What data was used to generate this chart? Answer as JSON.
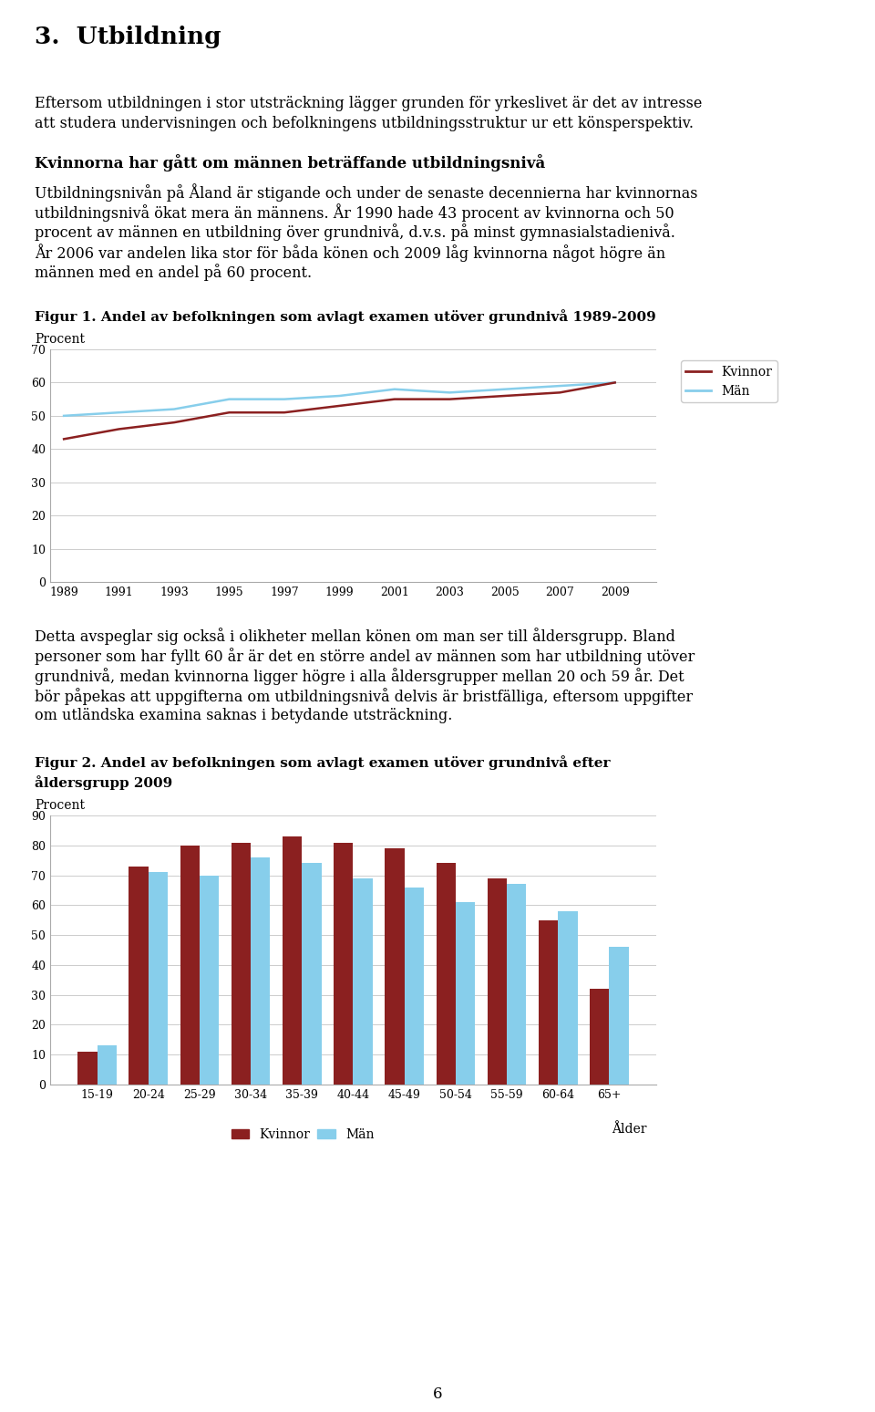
{
  "page_title": "3.  Utbildning",
  "para1_lines": [
    "Eftersom utbildningen i stor utsträckning lägger grunden för yrkeslivet är det av intresse",
    "att studera undervisningen och befolkningens utbildningsstruktur ur ett könsperspektiv."
  ],
  "subtitle1": "Kvinnorna har gått om männen beträffande utbildningsnivå",
  "para2_lines": [
    "Utbildningsnivån på Åland är stigande och under de senaste decennierna har kvinnornas",
    "utbildningsnivå ökat mera än männens. År 1990 hade 43 procent av kvinnorna och 50",
    "procent av männen en utbildning över grundnivå, d.v.s. på minst gymnasialstadienivå.",
    "År 2006 var andelen lika stor för båda könen och 2009 låg kvinnorna något högre än",
    "männen med en andel på 60 procent."
  ],
  "fig1_title": "Figur 1. Andel av befolkningen som avlagt examen utöver grundnivå 1989-2009",
  "fig1_ylabel": "Procent",
  "fig1_years": [
    1989,
    1991,
    1993,
    1995,
    1997,
    1999,
    2001,
    2003,
    2005,
    2007,
    2009
  ],
  "fig1_kvinnor": [
    43,
    46,
    48,
    51,
    51,
    53,
    55,
    55,
    56,
    57,
    60
  ],
  "fig1_man": [
    50,
    51,
    52,
    55,
    55,
    56,
    58,
    57,
    58,
    59,
    60
  ],
  "fig1_kvinnor_color": "#8B2020",
  "fig1_man_color": "#87CEEB",
  "fig1_ylim": [
    0,
    70
  ],
  "fig1_yticks": [
    0,
    10,
    20,
    30,
    40,
    50,
    60,
    70
  ],
  "fig1_legend_kvinnor": "Kvinnor",
  "fig1_legend_man": "Män",
  "para3_lines": [
    "Detta avspeglar sig också i olikheter mellan könen om man ser till åldersgrupp. Bland",
    "personer som har fyllt 60 år är det en större andel av männen som har utbildning utöver",
    "grundnivå, medan kvinnorna ligger högre i alla åldersgrupper mellan 20 och 59 år. Det",
    "bör påpekas att uppgifterna om utbildningsnivå delvis är bristfälliga, eftersom uppgifter",
    "om utländska examina saknas i betydande utsträckning."
  ],
  "fig2_title_line1": "Figur 2. Andel av befolkningen som avlagt examen utöver grundnivå efter",
  "fig2_title_line2": "åldersgrupp 2009",
  "fig2_ylabel": "Procent",
  "fig2_xlabel": "Ålder",
  "fig2_categories": [
    "15-19",
    "20-24",
    "25-29",
    "30-34",
    "35-39",
    "40-44",
    "45-49",
    "50-54",
    "55-59",
    "60-64",
    "65+"
  ],
  "fig2_kvinnor": [
    11,
    73,
    80,
    81,
    83,
    81,
    79,
    74,
    69,
    55,
    32
  ],
  "fig2_man": [
    13,
    71,
    70,
    76,
    74,
    69,
    66,
    61,
    67,
    58,
    46
  ],
  "fig2_kvinnor_color": "#8B2020",
  "fig2_man_color": "#87CEEB",
  "fig2_ylim": [
    0,
    90
  ],
  "fig2_yticks": [
    0,
    10,
    20,
    30,
    40,
    50,
    60,
    70,
    80,
    90
  ],
  "fig2_legend_kvinnor": "Kvinnor",
  "fig2_legend_man": "Män",
  "page_number": "6",
  "background_color": "#ffffff",
  "text_color": "#000000",
  "grid_color": "#cccccc"
}
